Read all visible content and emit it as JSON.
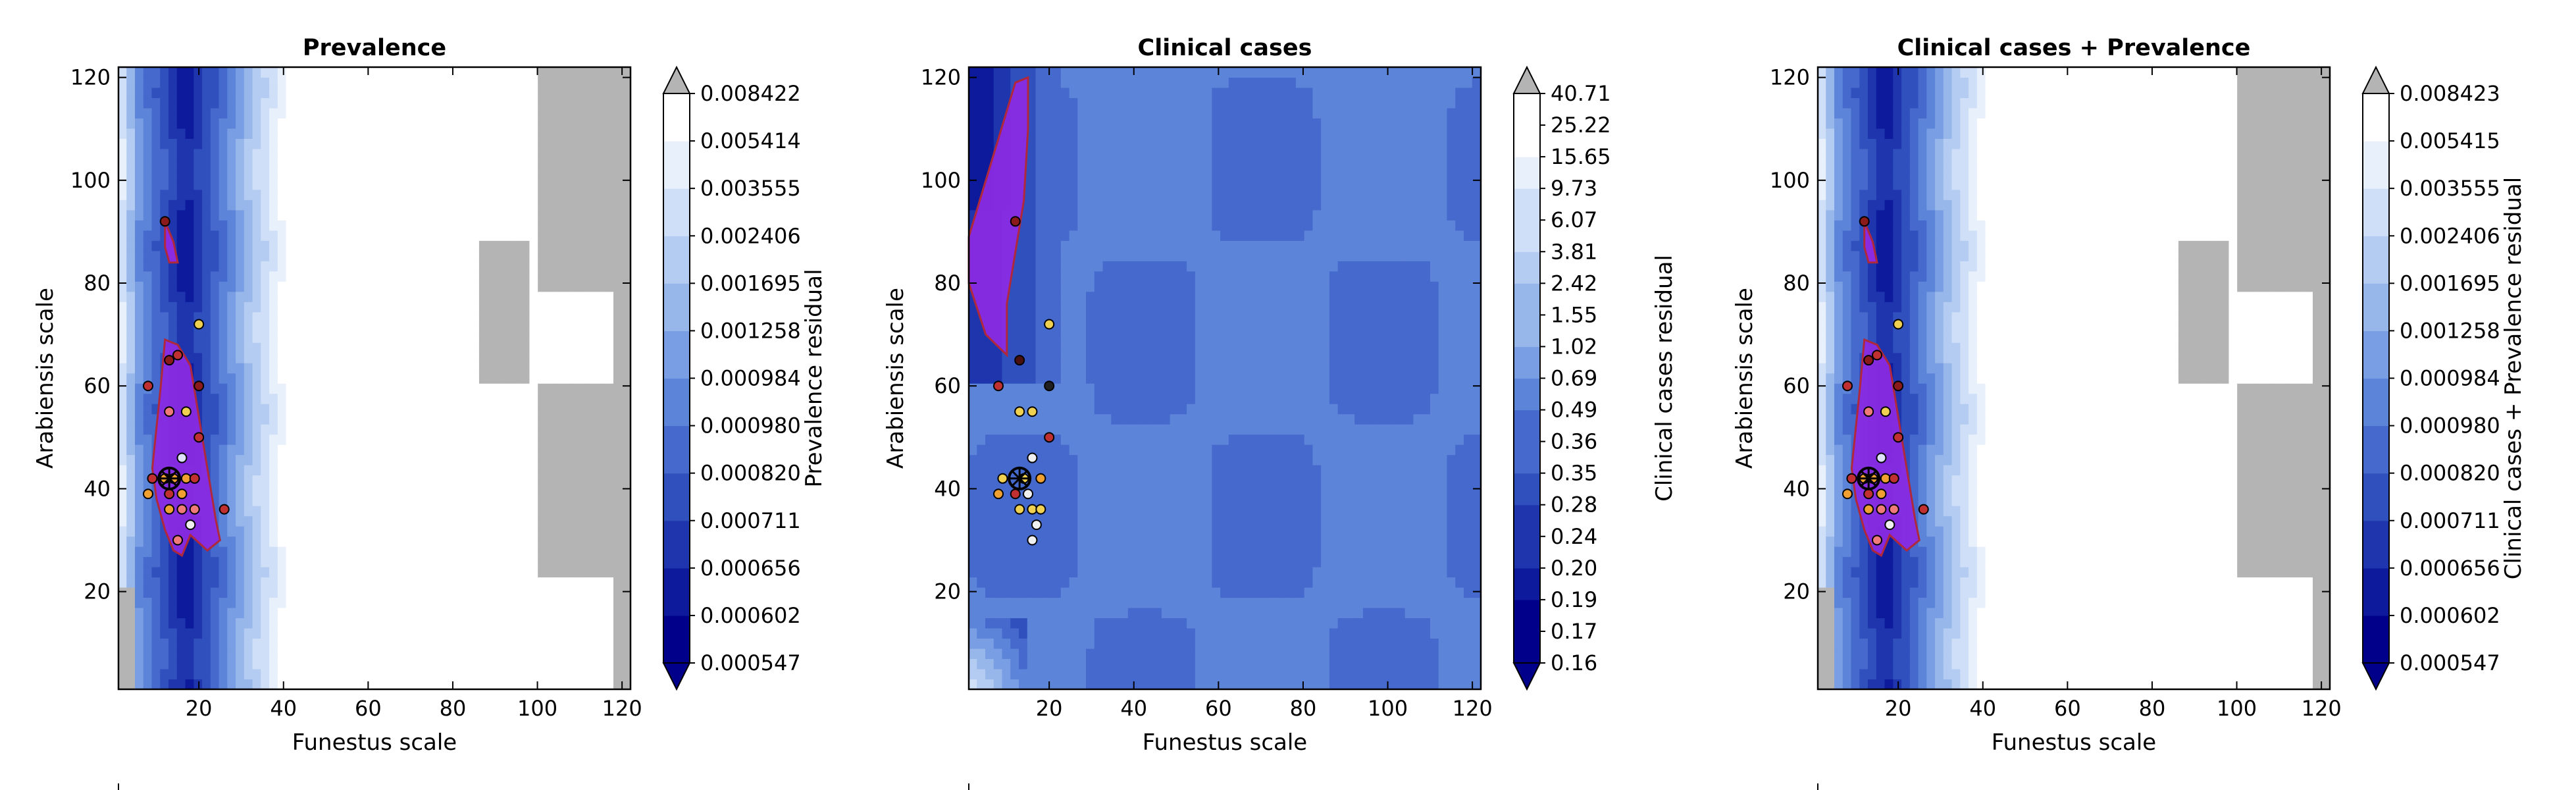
{
  "colors": {
    "ramp": [
      "#00008b",
      "#0d1a9c",
      "#1e35ad",
      "#3050bd",
      "#4569cc",
      "#5c84d9",
      "#799ee3",
      "#97b6ea",
      "#b4ccf1",
      "#cfdff7",
      "#e8f0fb",
      "#ffffff"
    ],
    "masked": "#b4b4b4",
    "highlight_fill": "#8a2be2",
    "highlight_edge": "#b0283c",
    "frame": "#000000"
  },
  "chart_data": [
    {
      "type": "heatmap",
      "title": "Prevalence",
      "xlabel": "Funestus scale",
      "ylabel": "Arabiensis scale",
      "colorbar_label": "Prevalence residual",
      "xlim": [
        1,
        122
      ],
      "ylim": [
        1,
        122
      ],
      "xticks": [
        "20",
        "40",
        "60",
        "80",
        "100",
        "120"
      ],
      "yticks": [
        "20",
        "40",
        "60",
        "80",
        "100",
        "120"
      ],
      "colorbar_levels": [
        "0.000547",
        "0.000602",
        "0.000656",
        "0.000711",
        "0.000820",
        "0.000980",
        "0.000984",
        "0.001258",
        "0.001695",
        "0.002406",
        "0.003555",
        "0.005414",
        "0.008422"
      ],
      "colorbar_extend": "both",
      "field": "prevalence",
      "highlight": "prevalence",
      "points": [
        {
          "x": 12,
          "y": 92,
          "c": "#8b1a1a"
        },
        {
          "x": 20,
          "y": 72,
          "c": "#f0d050"
        },
        {
          "x": 13,
          "y": 65,
          "c": "#8b1a1a"
        },
        {
          "x": 15,
          "y": 66,
          "c": "#c03030"
        },
        {
          "x": 8,
          "y": 60,
          "c": "#c03030"
        },
        {
          "x": 20,
          "y": 60,
          "c": "#8b1a1a"
        },
        {
          "x": 13,
          "y": 55,
          "c": "#f07a7a"
        },
        {
          "x": 17,
          "y": 55,
          "c": "#f0d050"
        },
        {
          "x": 20,
          "y": 50,
          "c": "#c03030"
        },
        {
          "x": 16,
          "y": 46,
          "c": "#e0e0ff"
        },
        {
          "x": 9,
          "y": 42,
          "c": "#c03030"
        },
        {
          "x": 12,
          "y": 42,
          "c": "#f0a030"
        },
        {
          "x": 14,
          "y": 42,
          "c": "#f0a030"
        },
        {
          "x": 17,
          "y": 42,
          "c": "#f0a030"
        },
        {
          "x": 19,
          "y": 42,
          "c": "#c03030"
        },
        {
          "x": 8,
          "y": 39,
          "c": "#f0a030"
        },
        {
          "x": 13,
          "y": 39,
          "c": "#c03030"
        },
        {
          "x": 16,
          "y": 39,
          "c": "#f0a030"
        },
        {
          "x": 13,
          "y": 36,
          "c": "#f0a030"
        },
        {
          "x": 16,
          "y": 36,
          "c": "#f07a7a"
        },
        {
          "x": 19,
          "y": 36,
          "c": "#f07a7a"
        },
        {
          "x": 18,
          "y": 33,
          "c": "#f0f0f0"
        },
        {
          "x": 15,
          "y": 30,
          "c": "#f07a7a"
        },
        {
          "x": 26,
          "y": 36,
          "c": "#c03030"
        }
      ],
      "best": {
        "x": 13,
        "y": 42
      }
    },
    {
      "type": "heatmap",
      "title": "Clinical cases",
      "xlabel": "Funestus scale",
      "ylabel": "Arabiensis scale",
      "colorbar_label": "Clinical cases residual",
      "xlim": [
        1,
        122
      ],
      "ylim": [
        1,
        122
      ],
      "xticks": [
        "20",
        "40",
        "60",
        "80",
        "100",
        "120"
      ],
      "yticks": [
        "20",
        "40",
        "60",
        "80",
        "100",
        "120"
      ],
      "colorbar_levels": [
        "0.16",
        "0.17",
        "0.19",
        "0.20",
        "0.24",
        "0.28",
        "0.35",
        "0.36",
        "0.49",
        "0.69",
        "1.02",
        "1.55",
        "2.42",
        "3.81",
        "6.07",
        "9.73",
        "15.65",
        "25.22",
        "40.71"
      ],
      "colorbar_extend": "both",
      "field": "clinical",
      "highlight": "clinical",
      "points": [
        {
          "x": 12,
          "y": 92,
          "c": "#8b1a1a"
        },
        {
          "x": 20,
          "y": 72,
          "c": "#f0d050"
        },
        {
          "x": 13,
          "y": 65,
          "c": "#4a1010"
        },
        {
          "x": 8,
          "y": 60,
          "c": "#c03030"
        },
        {
          "x": 20,
          "y": 60,
          "c": "#202020"
        },
        {
          "x": 13,
          "y": 55,
          "c": "#f0d050"
        },
        {
          "x": 16,
          "y": 55,
          "c": "#f0d050"
        },
        {
          "x": 20,
          "y": 50,
          "c": "#c03030"
        },
        {
          "x": 16,
          "y": 46,
          "c": "#f0f0f0"
        },
        {
          "x": 9,
          "y": 42,
          "c": "#f0d050"
        },
        {
          "x": 14,
          "y": 42,
          "c": "#f0d050"
        },
        {
          "x": 18,
          "y": 42,
          "c": "#f0a030"
        },
        {
          "x": 8,
          "y": 39,
          "c": "#f0a030"
        },
        {
          "x": 12,
          "y": 39,
          "c": "#c03030"
        },
        {
          "x": 15,
          "y": 39,
          "c": "#f0f0f0"
        },
        {
          "x": 13,
          "y": 36,
          "c": "#f0d050"
        },
        {
          "x": 16,
          "y": 36,
          "c": "#f0d050"
        },
        {
          "x": 18,
          "y": 36,
          "c": "#f0d050"
        },
        {
          "x": 17,
          "y": 33,
          "c": "#f0f0f0"
        },
        {
          "x": 16,
          "y": 30,
          "c": "#f0f0f0"
        }
      ],
      "best": {
        "x": 13,
        "y": 42
      }
    },
    {
      "type": "heatmap",
      "title": "Clinical cases + Prevalence",
      "xlabel": "Funestus scale",
      "ylabel": "Arabiensis scale",
      "colorbar_label": "Clinical cases + Prevalence residual",
      "xlim": [
        1,
        122
      ],
      "ylim": [
        1,
        122
      ],
      "xticks": [
        "20",
        "40",
        "60",
        "80",
        "100",
        "120"
      ],
      "yticks": [
        "20",
        "40",
        "60",
        "80",
        "100",
        "120"
      ],
      "colorbar_levels": [
        "0.000547",
        "0.000602",
        "0.000656",
        "0.000711",
        "0.000820",
        "0.000980",
        "0.000984",
        "0.001258",
        "0.001695",
        "0.002406",
        "0.003555",
        "0.005415",
        "0.008423"
      ],
      "colorbar_extend": "both",
      "field": "prevalence",
      "highlight": "prevalence",
      "points": [
        {
          "x": 12,
          "y": 92,
          "c": "#8b1a1a"
        },
        {
          "x": 20,
          "y": 72,
          "c": "#f0d050"
        },
        {
          "x": 13,
          "y": 65,
          "c": "#8b1a1a"
        },
        {
          "x": 15,
          "y": 66,
          "c": "#c03030"
        },
        {
          "x": 8,
          "y": 60,
          "c": "#c03030"
        },
        {
          "x": 20,
          "y": 60,
          "c": "#8b1a1a"
        },
        {
          "x": 13,
          "y": 55,
          "c": "#f07a7a"
        },
        {
          "x": 17,
          "y": 55,
          "c": "#f0d050"
        },
        {
          "x": 20,
          "y": 50,
          "c": "#c03030"
        },
        {
          "x": 16,
          "y": 46,
          "c": "#e0e0ff"
        },
        {
          "x": 9,
          "y": 42,
          "c": "#c03030"
        },
        {
          "x": 12,
          "y": 42,
          "c": "#f0a030"
        },
        {
          "x": 14,
          "y": 42,
          "c": "#f0a030"
        },
        {
          "x": 17,
          "y": 42,
          "c": "#f0a030"
        },
        {
          "x": 19,
          "y": 42,
          "c": "#c03030"
        },
        {
          "x": 8,
          "y": 39,
          "c": "#f0a030"
        },
        {
          "x": 13,
          "y": 39,
          "c": "#c03030"
        },
        {
          "x": 16,
          "y": 39,
          "c": "#f0a030"
        },
        {
          "x": 13,
          "y": 36,
          "c": "#f0a030"
        },
        {
          "x": 16,
          "y": 36,
          "c": "#f07a7a"
        },
        {
          "x": 19,
          "y": 36,
          "c": "#f07a7a"
        },
        {
          "x": 18,
          "y": 33,
          "c": "#f0f0f0"
        },
        {
          "x": 15,
          "y": 30,
          "c": "#f07a7a"
        },
        {
          "x": 26,
          "y": 36,
          "c": "#c03030"
        }
      ],
      "best": {
        "x": 13,
        "y": 42
      }
    }
  ]
}
